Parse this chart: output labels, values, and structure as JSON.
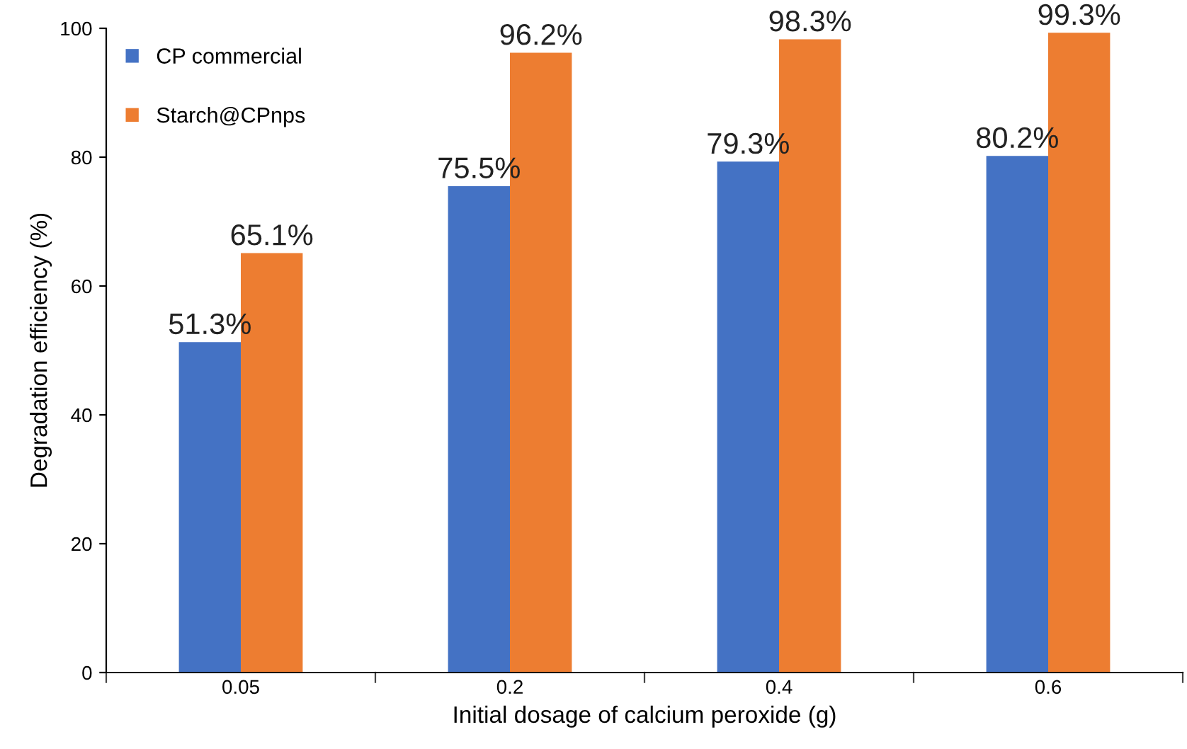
{
  "chart_data": {
    "type": "bar",
    "xlabel": "Initial dosage of calcium peroxide (g)",
    "ylabel": "Degradation efficiency (%)",
    "categories": [
      "0.05",
      "0.2",
      "0.4",
      "0.6"
    ],
    "series": [
      {
        "name": "CP commercial",
        "color": "#4472c4",
        "values": [
          51.3,
          75.5,
          79.3,
          80.2
        ],
        "value_labels": [
          "51.3%",
          "75.5%",
          "79.3%",
          "80.2%"
        ]
      },
      {
        "name": "Starch@CPnps",
        "color": "#ed7d31",
        "values": [
          65.1,
          96.2,
          98.3,
          99.3
        ],
        "value_labels": [
          "65.1%",
          "96.2%",
          "98.3%",
          "99.3%"
        ]
      }
    ],
    "ylim": [
      0,
      100
    ],
    "yticks": [
      0,
      20,
      40,
      60,
      80,
      100
    ],
    "grid": false,
    "legend": "top left"
  }
}
